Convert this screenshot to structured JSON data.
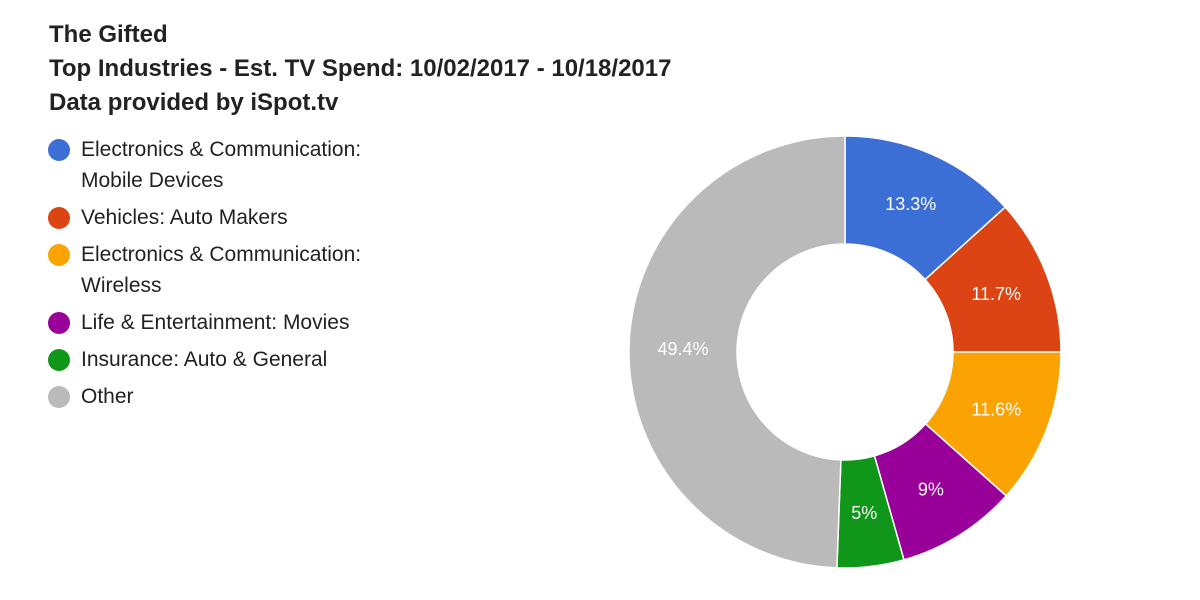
{
  "title": {
    "line1": "The Gifted",
    "line2": "Top Industries - Est. TV Spend: 10/02/2017 - 10/18/2017",
    "line3": "Data provided by iSpot.tv"
  },
  "colors": {
    "blue": "#3b6fd6",
    "red": "#dc4414",
    "orange": "#fba302",
    "purple": "#990099",
    "green": "#109618",
    "gray": "#bababa"
  },
  "chart_data": {
    "type": "pie",
    "subtype": "donut",
    "title": "The Gifted",
    "subtitle": "Top Industries - Est. TV Spend: 10/02/2017 - 10/18/2017",
    "caption": "Data provided by iSpot.tv",
    "legend_position": "left",
    "slices": [
      {
        "label": "Electronics & Communication:\nMobile Devices",
        "value": 13.3,
        "display": "13.3%",
        "color": "#3b6fd6"
      },
      {
        "label": "Vehicles: Auto Makers",
        "value": 11.7,
        "display": "11.7%",
        "color": "#dc4414"
      },
      {
        "label": "Electronics & Communication:\nWireless",
        "value": 11.6,
        "display": "11.6%",
        "color": "#fba302"
      },
      {
        "label": "Life & Entertainment: Movies",
        "value": 9,
        "display": "9%",
        "color": "#990099"
      },
      {
        "label": "Insurance: Auto & General",
        "value": 5,
        "display": "5%",
        "color": "#109618"
      },
      {
        "label": "Other",
        "value": 49.4,
        "display": "49.4%",
        "color": "#bababa"
      }
    ]
  }
}
